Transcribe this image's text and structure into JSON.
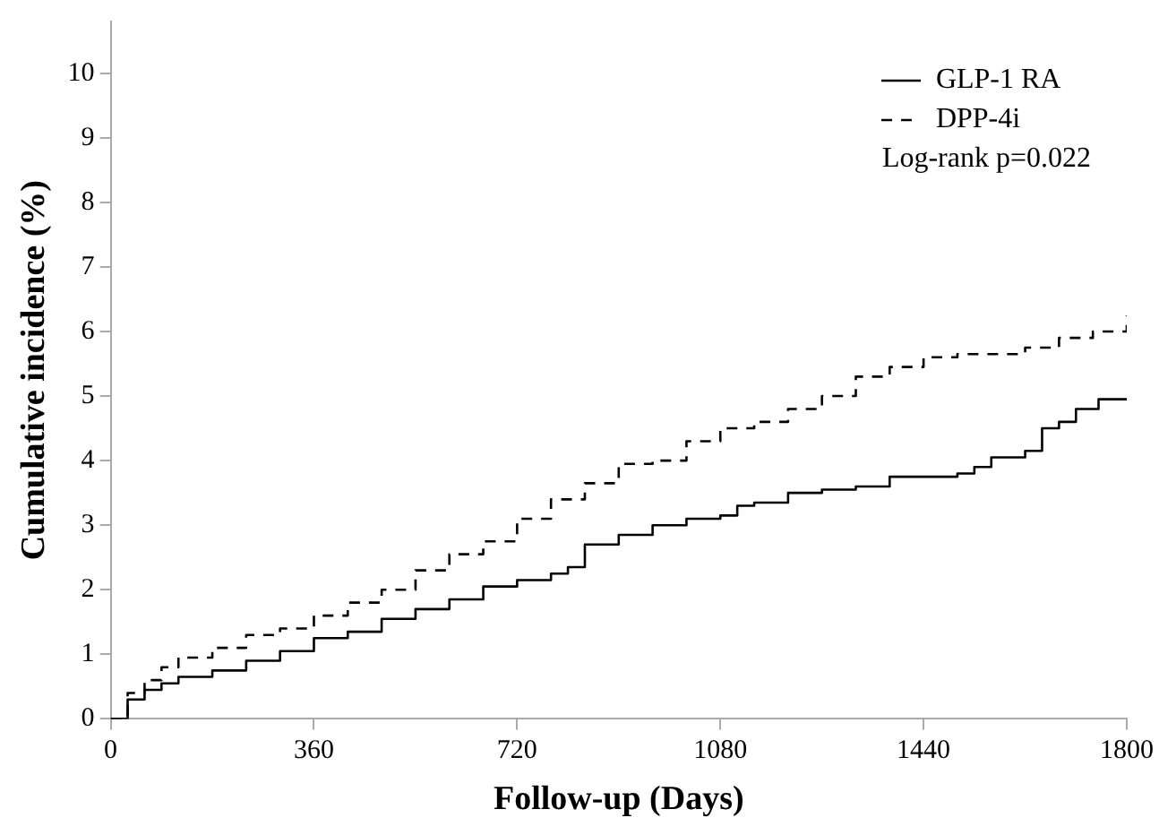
{
  "chart_data": {
    "type": "step",
    "xlabel": "Follow-up (Days)",
    "ylabel": "Cumulative incidence (%)",
    "xlim": [
      0,
      1800
    ],
    "xticks": [
      0,
      360,
      720,
      1080,
      1440,
      1800
    ],
    "ylim": [
      0,
      10.8
    ],
    "yticks": [
      0,
      1,
      2,
      3,
      4,
      5,
      6,
      7,
      8,
      9,
      10
    ],
    "grid": false,
    "legend": "top right",
    "marker": "none",
    "annotations": [
      "Log-rank p=0.022"
    ],
    "series": [
      {
        "name": "GLP-1 RA",
        "color": "#000000",
        "line_style": "solid",
        "x": [
          0,
          30,
          60,
          90,
          120,
          180,
          240,
          300,
          360,
          420,
          480,
          540,
          600,
          660,
          720,
          780,
          810,
          840,
          900,
          960,
          1020,
          1080,
          1110,
          1140,
          1200,
          1260,
          1320,
          1380,
          1500,
          1530,
          1560,
          1620,
          1650,
          1680,
          1710,
          1750,
          1800
        ],
        "values": [
          0,
          0.3,
          0.45,
          0.55,
          0.65,
          0.75,
          0.9,
          1.05,
          1.25,
          1.35,
          1.55,
          1.7,
          1.85,
          2.05,
          2.15,
          2.25,
          2.35,
          2.7,
          2.85,
          3.0,
          3.1,
          3.15,
          3.3,
          3.35,
          3.5,
          3.55,
          3.6,
          3.75,
          3.8,
          3.9,
          4.05,
          4.15,
          4.5,
          4.6,
          4.8,
          4.95,
          4.95
        ]
      },
      {
        "name": "DPP-4i",
        "color": "#000000",
        "line_style": "dashed",
        "x": [
          0,
          30,
          60,
          90,
          120,
          180,
          240,
          300,
          360,
          420,
          480,
          540,
          600,
          660,
          720,
          780,
          840,
          900,
          960,
          1020,
          1080,
          1140,
          1200,
          1260,
          1320,
          1380,
          1440,
          1500,
          1560,
          1620,
          1680,
          1740,
          1800
        ],
        "values": [
          0,
          0.4,
          0.6,
          0.8,
          0.95,
          1.1,
          1.3,
          1.4,
          1.6,
          1.8,
          2.0,
          2.3,
          2.55,
          2.75,
          3.1,
          3.4,
          3.65,
          3.95,
          4.0,
          4.3,
          4.5,
          4.6,
          4.8,
          5.0,
          5.3,
          5.45,
          5.6,
          5.65,
          5.65,
          5.75,
          5.9,
          6.0,
          6.25
        ]
      }
    ]
  }
}
